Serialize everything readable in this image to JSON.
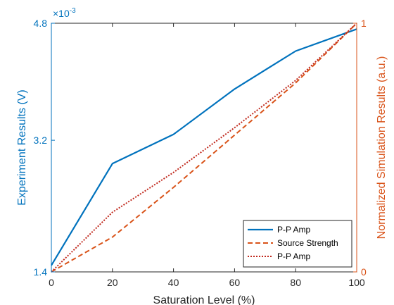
{
  "chart_data": {
    "type": "line",
    "xlabel": "Saturation Level (%)",
    "ylabel_left": "Experiment Results (V)",
    "ylabel_right": "Normalized Simulation Results (a.u.)",
    "left_axis_multiplier": "×10",
    "left_axis_exponent": "-3",
    "xlim": [
      0,
      100
    ],
    "ylim_left": [
      1.4,
      4.8
    ],
    "ylim_right": [
      0,
      1
    ],
    "x_ticks": [
      0,
      20,
      40,
      60,
      80,
      100
    ],
    "x_tick_labels": [
      "0",
      "20",
      "40",
      "60",
      "80",
      "100"
    ],
    "y_left_ticks": [
      1.4,
      3.2,
      4.8
    ],
    "y_left_tick_labels": [
      "1.4",
      "3.2",
      "4.8"
    ],
    "y_right_ticks": [
      0,
      1
    ],
    "y_right_tick_labels": [
      "0",
      "1"
    ],
    "legend_position": "bottom-right",
    "grid": false,
    "colors": {
      "left_axis": "#0072BD",
      "right_axis": "#D95319",
      "experiment": "#0072BD",
      "simulation": "#D95319"
    },
    "series": [
      {
        "name": "P-P Amp",
        "axis": "left",
        "style": "solid",
        "color": "#0072BD",
        "x": [
          0,
          20,
          40,
          60,
          80,
          100
        ],
        "values": [
          1.49,
          2.88,
          3.28,
          3.9,
          4.42,
          4.72
        ]
      },
      {
        "name": "Source Strength",
        "axis": "right",
        "style": "dashed",
        "color": "#D95319",
        "x": [
          0,
          20,
          40,
          60,
          80,
          100
        ],
        "values": [
          0.0,
          0.14,
          0.34,
          0.55,
          0.76,
          1.0
        ]
      },
      {
        "name": "P-P Amp",
        "axis": "right",
        "style": "dotted",
        "color": "#C0281C",
        "x": [
          0,
          20,
          40,
          60,
          80,
          100
        ],
        "values": [
          0.0,
          0.24,
          0.4,
          0.58,
          0.77,
          1.0
        ]
      }
    ]
  }
}
